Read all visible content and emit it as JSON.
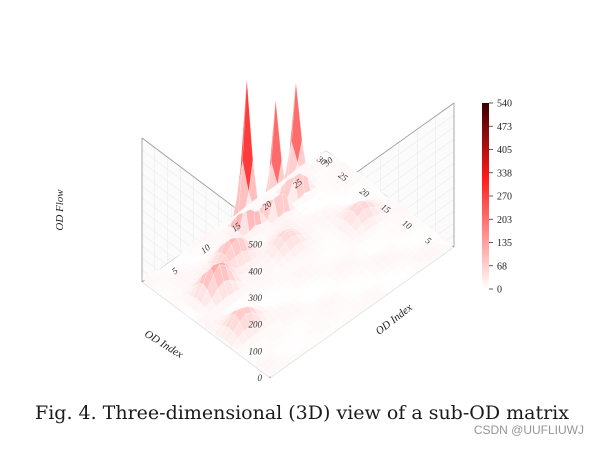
{
  "chart_data": {
    "type": "surface3d",
    "xlabel": "OD Index",
    "ylabel": "OD Index",
    "zlabel": "OD Flow",
    "x_ticks": [
      5,
      10,
      15,
      20,
      25,
      30
    ],
    "y_ticks": [
      5,
      10,
      15,
      20,
      25,
      30
    ],
    "z_ticks": [
      0,
      100,
      200,
      300,
      400,
      500
    ],
    "xlim": [
      0,
      30
    ],
    "ylim": [
      0,
      30
    ],
    "zlim": [
      0,
      540
    ],
    "colorbar": {
      "ticks": [
        "540",
        "473",
        "405",
        "338",
        "270",
        "203",
        "135",
        "68",
        "0"
      ],
      "min": 0,
      "max": 540,
      "low_color": "#ffffff",
      "mid_color": "#ff1a1a",
      "high_color": "#3a0000"
    },
    "peaks": [
      {
        "x": 27,
        "y": 15,
        "z": 540
      },
      {
        "x": 26,
        "y": 19,
        "z": 420
      },
      {
        "x": 27,
        "y": 23,
        "z": 400
      },
      {
        "x": 20,
        "y": 5,
        "z": 130
      },
      {
        "x": 23,
        "y": 10,
        "z": 110
      },
      {
        "x": 11,
        "y": 3,
        "z": 80
      },
      {
        "x": 19,
        "y": 16,
        "z": 60
      },
      {
        "x": 15,
        "y": 25,
        "z": 55
      }
    ]
  },
  "caption": "Fig. 4. Three-dimensional (3D) view of a sub-OD matrix",
  "watermark": "CSDN @UUFLIUWJ"
}
